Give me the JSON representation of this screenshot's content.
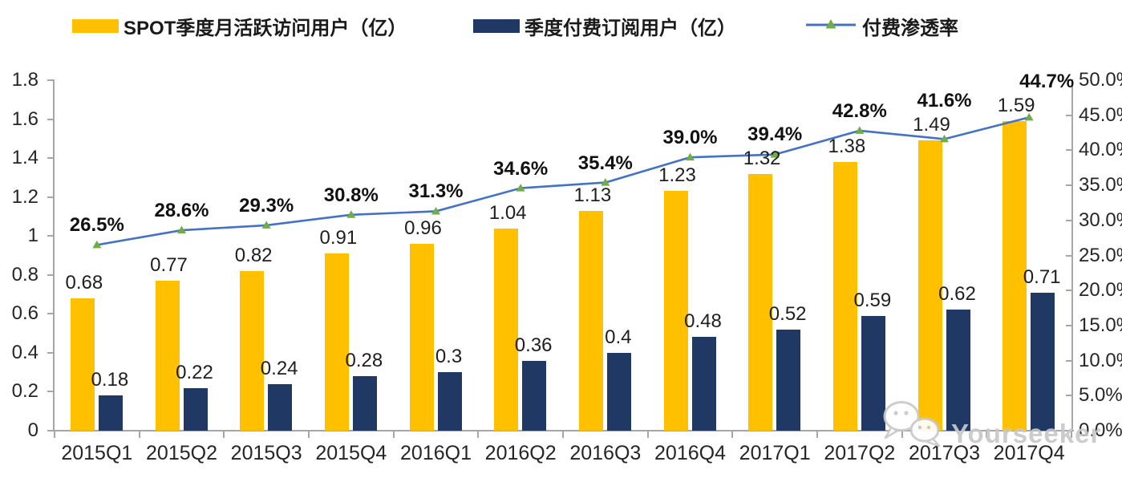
{
  "legend": {
    "items": [
      {
        "label": "SPOT季度月活跃访问用户（亿）",
        "swatch": "bar",
        "color": "#FFC000"
      },
      {
        "label": "季度付费订阅用户（亿）",
        "swatch": "bar",
        "color": "#1F3864"
      },
      {
        "label": "付费渗透率",
        "swatch": "line",
        "color": "#4472C4",
        "marker_color": "#70AD47"
      }
    ]
  },
  "watermark": {
    "text": "Yourseeker",
    "icon": "wechat-logo",
    "color": "#c8c8c8"
  },
  "chart_data": {
    "type": "combo bar+line",
    "categories": [
      "2015Q1",
      "2015Q2",
      "2015Q3",
      "2015Q4",
      "2016Q1",
      "2016Q2",
      "2016Q3",
      "2016Q4",
      "2017Q1",
      "2017Q2",
      "2017Q3",
      "2017Q4"
    ],
    "series": [
      {
        "name": "SPOT季度月活跃访问用户（亿）",
        "type": "bar",
        "axis": "left",
        "color": "#FFC000",
        "values": [
          0.68,
          0.77,
          0.82,
          0.91,
          0.96,
          1.04,
          1.13,
          1.23,
          1.32,
          1.38,
          1.49,
          1.59
        ],
        "labels": [
          "0.68",
          "0.77",
          "0.82",
          "0.91",
          "0.96",
          "1.04",
          "1.13",
          "1.23",
          "1.32",
          "1.38",
          "1.49",
          "1.59"
        ]
      },
      {
        "name": "季度付费订阅用户（亿）",
        "type": "bar",
        "axis": "left",
        "color": "#1F3864",
        "values": [
          0.18,
          0.22,
          0.24,
          0.28,
          0.3,
          0.36,
          0.4,
          0.48,
          0.52,
          0.59,
          0.62,
          0.71
        ],
        "labels": [
          "0.18",
          "0.22",
          "0.24",
          "0.28",
          "0.3",
          "0.36",
          "0.4",
          "0.48",
          "0.52",
          "0.59",
          "0.62",
          "0.71"
        ]
      },
      {
        "name": "付费渗透率",
        "type": "line",
        "axis": "right",
        "color": "#4472C4",
        "marker": "triangle",
        "marker_color": "#70AD47",
        "values": [
          26.5,
          28.6,
          29.3,
          30.8,
          31.3,
          34.6,
          35.4,
          39.0,
          39.4,
          42.8,
          41.6,
          44.7
        ],
        "labels": [
          "26.5%",
          "28.6%",
          "29.3%",
          "30.8%",
          "31.3%",
          "34.6%",
          "35.4%",
          "39.0%",
          "39.4%",
          "42.8%",
          "41.6%",
          "44.7%"
        ]
      }
    ],
    "left_axis": {
      "min": 0,
      "max": 1.8,
      "tick_step": 0.2,
      "tick_labels": [
        "0",
        "0.2",
        "0.4",
        "0.6",
        "0.8",
        "1",
        "1.2",
        "1.4",
        "1.6",
        "1.8"
      ]
    },
    "right_axis": {
      "min": 0,
      "max": 50,
      "tick_step": 5,
      "tick_labels": [
        "0.0%",
        "5.0%",
        "10.0%",
        "15.0%",
        "20.0%",
        "25.0%",
        "30.0%",
        "35.0%",
        "40.0%",
        "45.0%",
        "50.0%"
      ]
    },
    "grid": false,
    "legend_position": "top",
    "pct_label_dx": {
      "11": 22
    }
  }
}
